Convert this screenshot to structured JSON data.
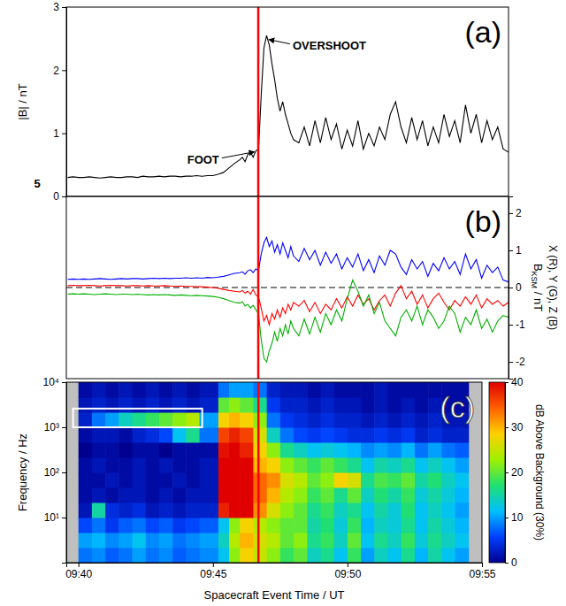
{
  "chart_data": [
    {
      "type": "line",
      "panel_label": "(a)",
      "y_label": "|B| / nT",
      "tick_labels": "y",
      "xlim": [
        39.55,
        56.0
      ],
      "ylim": [
        0,
        3
      ],
      "yticks": [
        0,
        1,
        2,
        3
      ],
      "event_x": 46.69,
      "annotations": [
        {
          "text": "FOOT",
          "x": 46.65,
          "y": 0.72
        },
        {
          "text": "OVERSHOOT",
          "x": 46.95,
          "y": 2.5
        },
        {
          "text": "5"
        }
      ],
      "x": [
        39.6,
        39.8,
        40.0,
        40.2,
        40.4,
        40.6,
        40.8,
        41.0,
        41.2,
        41.4,
        41.6,
        41.8,
        42.0,
        42.2,
        42.4,
        42.6,
        42.8,
        43.0,
        43.2,
        43.4,
        43.6,
        43.8,
        44.0,
        44.2,
        44.4,
        44.6,
        44.8,
        45.0,
        45.2,
        45.4,
        45.6,
        45.8,
        46.0,
        46.1,
        46.2,
        46.3,
        46.4,
        46.5,
        46.6,
        46.7,
        46.8,
        46.9,
        47.0,
        47.1,
        47.2,
        47.3,
        47.4,
        47.5,
        47.6,
        47.7,
        47.8,
        47.9,
        48.0,
        48.2,
        48.4,
        48.6,
        48.8,
        49.0,
        49.2,
        49.4,
        49.6,
        49.8,
        50.0,
        50.2,
        50.4,
        50.6,
        50.8,
        51.0,
        51.2,
        51.4,
        51.6,
        51.8,
        52.0,
        52.2,
        52.4,
        52.6,
        52.8,
        53.0,
        53.2,
        53.4,
        53.6,
        53.8,
        54.0,
        54.2,
        54.4,
        54.6,
        54.8,
        55.0,
        55.2,
        55.4,
        55.6,
        55.8,
        56.0
      ],
      "series": [
        {
          "color": "#000000",
          "values": [
            0.3,
            0.31,
            0.3,
            0.3,
            0.31,
            0.3,
            0.29,
            0.3,
            0.31,
            0.3,
            0.3,
            0.31,
            0.31,
            0.3,
            0.32,
            0.31,
            0.31,
            0.32,
            0.31,
            0.32,
            0.32,
            0.31,
            0.32,
            0.32,
            0.33,
            0.32,
            0.33,
            0.33,
            0.35,
            0.38,
            0.45,
            0.52,
            0.58,
            0.62,
            0.55,
            0.66,
            0.7,
            0.62,
            0.72,
            0.75,
            1.6,
            2.35,
            2.55,
            2.4,
            2.1,
            1.85,
            1.55,
            1.35,
            1.5,
            1.3,
            1.15,
            1.0,
            0.9,
            0.85,
            1.1,
            0.8,
            1.2,
            0.85,
            1.25,
            0.9,
            1.15,
            0.75,
            1.05,
            0.8,
            1.2,
            0.75,
            1.0,
            0.8,
            1.1,
            0.9,
            1.3,
            1.5,
            1.1,
            0.85,
            1.25,
            0.9,
            1.2,
            0.8,
            1.1,
            0.85,
            1.3,
            0.95,
            1.2,
            0.85,
            1.45,
            1.0,
            1.3,
            0.85,
            1.2,
            0.9,
            1.1,
            0.75,
            0.7
          ]
        }
      ]
    },
    {
      "type": "line",
      "panel_label": "(b)",
      "y2_label": {
        "base": "B",
        "subscript": "KSM",
        "rest": " / nT"
      },
      "y2_label_line2": "X (R), Y (G), Z (B)",
      "tick_labels": "y",
      "xlim": [
        39.55,
        56.0
      ],
      "y2lim": [
        -2.45,
        2.45
      ],
      "y2ticks": [
        -2,
        -1,
        0,
        1,
        2
      ],
      "reference_line_y": 0,
      "event_x": 46.69,
      "x": [
        39.6,
        39.8,
        40.0,
        40.2,
        40.4,
        40.6,
        40.8,
        41.0,
        41.2,
        41.4,
        41.6,
        41.8,
        42.0,
        42.2,
        42.4,
        42.6,
        42.8,
        43.0,
        43.2,
        43.4,
        43.6,
        43.8,
        44.0,
        44.2,
        44.4,
        44.6,
        44.8,
        45.0,
        45.2,
        45.4,
        45.6,
        45.8,
        46.0,
        46.1,
        46.2,
        46.3,
        46.4,
        46.5,
        46.6,
        46.7,
        46.8,
        46.9,
        47.0,
        47.1,
        47.2,
        47.3,
        47.4,
        47.5,
        47.6,
        47.7,
        47.8,
        47.9,
        48.0,
        48.2,
        48.4,
        48.6,
        48.8,
        49.0,
        49.2,
        49.4,
        49.6,
        49.8,
        50.0,
        50.2,
        50.4,
        50.6,
        50.8,
        51.0,
        51.2,
        51.4,
        51.6,
        51.8,
        52.0,
        52.2,
        52.4,
        52.6,
        52.8,
        53.0,
        53.2,
        53.4,
        53.6,
        53.8,
        54.0,
        54.2,
        54.4,
        54.6,
        54.8,
        55.0,
        55.2,
        55.4,
        55.6,
        55.8,
        56.0
      ],
      "series": [
        {
          "color": "#ff0000",
          "axis": "y2",
          "values": [
            0.05,
            0.06,
            0.05,
            0.05,
            0.06,
            0.05,
            0.04,
            0.05,
            0.06,
            0.05,
            0.05,
            0.04,
            0.05,
            0.05,
            0.04,
            0.05,
            0.04,
            0.04,
            0.05,
            0.04,
            0.03,
            0.04,
            0.03,
            0.03,
            0.02,
            0.02,
            0.01,
            0.0,
            -0.02,
            -0.05,
            -0.08,
            -0.1,
            -0.12,
            -0.08,
            -0.15,
            -0.1,
            -0.18,
            -0.05,
            -0.2,
            -0.25,
            -0.55,
            -0.9,
            -0.75,
            -1.0,
            -0.7,
            -0.85,
            -0.6,
            -0.8,
            -0.55,
            -0.7,
            -0.45,
            -0.6,
            -0.4,
            -0.5,
            -0.35,
            -0.65,
            -0.4,
            -0.7,
            -0.45,
            -0.6,
            -0.3,
            -0.55,
            -0.25,
            -0.5,
            -0.2,
            -0.45,
            -0.3,
            -0.6,
            -0.35,
            -0.2,
            -0.5,
            -0.15,
            0.05,
            -0.3,
            -0.1,
            -0.45,
            -0.2,
            -0.55,
            -0.3,
            -0.15,
            -0.4,
            -0.6,
            -0.35,
            -0.5,
            -0.25,
            -0.45,
            -0.2,
            -0.55,
            -0.3,
            -0.45,
            -0.35,
            -0.5,
            -0.4
          ]
        },
        {
          "color": "#00b000",
          "axis": "y2",
          "values": [
            -0.18,
            -0.17,
            -0.18,
            -0.17,
            -0.18,
            -0.19,
            -0.18,
            -0.17,
            -0.18,
            -0.19,
            -0.18,
            -0.18,
            -0.19,
            -0.18,
            -0.19,
            -0.2,
            -0.19,
            -0.2,
            -0.19,
            -0.2,
            -0.21,
            -0.2,
            -0.21,
            -0.22,
            -0.21,
            -0.22,
            -0.23,
            -0.24,
            -0.26,
            -0.3,
            -0.35,
            -0.4,
            -0.42,
            -0.38,
            -0.5,
            -0.45,
            -0.55,
            -0.48,
            -0.6,
            -0.7,
            -1.4,
            -1.9,
            -2.0,
            -1.7,
            -1.5,
            -1.2,
            -1.45,
            -1.1,
            -1.3,
            -1.0,
            -1.25,
            -0.9,
            -1.1,
            -1.3,
            -0.85,
            -1.25,
            -0.8,
            -1.2,
            -0.7,
            -1.0,
            -0.6,
            -0.9,
            -0.3,
            0.2,
            -0.1,
            -0.5,
            -0.2,
            -0.7,
            -0.4,
            -0.9,
            -1.1,
            -1.3,
            -0.8,
            -0.6,
            -0.9,
            -0.5,
            -1.0,
            -0.6,
            -0.8,
            -1.1,
            -0.9,
            -0.5,
            -0.7,
            -1.2,
            -0.8,
            -1.0,
            -0.6,
            -1.1,
            -0.85,
            -1.2,
            -0.9,
            -0.75,
            -0.8
          ]
        },
        {
          "color": "#0000ff",
          "axis": "y2",
          "values": [
            0.22,
            0.23,
            0.22,
            0.23,
            0.22,
            0.23,
            0.24,
            0.23,
            0.22,
            0.23,
            0.24,
            0.23,
            0.24,
            0.24,
            0.23,
            0.24,
            0.25,
            0.24,
            0.25,
            0.24,
            0.25,
            0.25,
            0.26,
            0.25,
            0.26,
            0.25,
            0.27,
            0.26,
            0.28,
            0.3,
            0.34,
            0.38,
            0.4,
            0.42,
            0.36,
            0.45,
            0.48,
            0.4,
            0.5,
            0.45,
            0.9,
            1.2,
            1.35,
            1.1,
            1.25,
            0.95,
            1.15,
            0.9,
            1.2,
            1.0,
            0.8,
            1.1,
            0.85,
            0.7,
            1.05,
            0.75,
            1.0,
            0.6,
            0.95,
            0.65,
            0.9,
            0.5,
            0.8,
            0.55,
            0.9,
            0.45,
            0.75,
            0.4,
            0.85,
            0.6,
            1.0,
            0.9,
            0.55,
            0.35,
            0.75,
            0.5,
            0.7,
            0.3,
            0.65,
            0.45,
            0.8,
            0.5,
            0.7,
            0.35,
            0.9,
            0.5,
            0.75,
            0.25,
            0.6,
            0.4,
            0.55,
            0.2,
            0.15
          ]
        }
      ]
    },
    {
      "type": "heatmap",
      "panel_label": "(c)",
      "x_label": "Spacecraft Event Time / UT",
      "y_label": "Frequency / Hz",
      "tick_labels": true,
      "log": "y",
      "xlim": [
        39.55,
        55.0
      ],
      "xticks": [
        {
          "value": 40,
          "label": "09:40"
        },
        {
          "value": 45,
          "label": "09:45"
        },
        {
          "value": 50,
          "label": "09:50"
        },
        {
          "value": 55,
          "label": "09:55"
        }
      ],
      "ylim": [
        1,
        10000
      ],
      "yticks": [
        {
          "value": 10,
          "label": "10¹"
        },
        {
          "value": 100,
          "label": "10²"
        },
        {
          "value": 1000,
          "label": "10³"
        },
        {
          "value": 10000,
          "label": "10⁴"
        }
      ],
      "event_x": 46.69,
      "highlight_box": {
        "x": [
          39.8,
          44.6
        ],
        "y": [
          1000,
          2600
        ]
      },
      "colorbar": {
        "lim": [
          0,
          40
        ],
        "ticks": [
          0,
          10,
          20,
          30,
          40
        ],
        "label": "dB Above Background (30%)"
      },
      "x_edges": [
        40.0,
        40.5,
        41.0,
        41.5,
        42.0,
        42.5,
        43.0,
        43.5,
        44.0,
        44.5,
        45.2,
        45.6,
        46.0,
        46.5,
        47.0,
        47.5,
        48.0,
        48.5,
        49.0,
        49.5,
        50.0,
        50.5,
        51.0,
        51.5,
        52.0,
        52.5,
        53.0,
        53.5,
        54.0,
        54.5
      ],
      "y_edges": [
        1,
        2.154,
        4.642,
        10,
        21.54,
        46.42,
        100,
        215.4,
        464.2,
        1000,
        2154,
        4642,
        10000
      ],
      "cells": [
        [
          8,
          9,
          7,
          8,
          10,
          8,
          9,
          7,
          8,
          9,
          12,
          22,
          28,
          25,
          22,
          18,
          20,
          14,
          16,
          12,
          18,
          10,
          14,
          12,
          16,
          11,
          15,
          12,
          10
        ],
        [
          10,
          11,
          9,
          10,
          12,
          9,
          10,
          8,
          9,
          10,
          14,
          24,
          30,
          26,
          24,
          20,
          22,
          16,
          18,
          14,
          20,
          12,
          16,
          14,
          18,
          13,
          16,
          14,
          12
        ],
        [
          6,
          8,
          5,
          7,
          8,
          6,
          7,
          5,
          6,
          7,
          12,
          22,
          28,
          24,
          22,
          20,
          20,
          15,
          17,
          13,
          18,
          11,
          14,
          13,
          16,
          12,
          15,
          13,
          11
        ],
        [
          2,
          15,
          4,
          3,
          4,
          2,
          3,
          2,
          3,
          3,
          38,
          40,
          40,
          32,
          26,
          22,
          20,
          16,
          18,
          14,
          16,
          12,
          15,
          13,
          17,
          12,
          14,
          12,
          10
        ],
        [
          1,
          2,
          1,
          2,
          2,
          1,
          2,
          1,
          2,
          2,
          40,
          40,
          40,
          34,
          30,
          24,
          22,
          18,
          20,
          16,
          20,
          14,
          17,
          15,
          18,
          13,
          15,
          13,
          11
        ],
        [
          1,
          1,
          2,
          1,
          2,
          1,
          1,
          2,
          1,
          2,
          40,
          40,
          40,
          34,
          32,
          26,
          24,
          20,
          22,
          28,
          26,
          16,
          19,
          18,
          20,
          15,
          17,
          14,
          12
        ],
        [
          1,
          2,
          1,
          1,
          2,
          1,
          2,
          1,
          1,
          2,
          40,
          40,
          40,
          30,
          28,
          22,
          20,
          18,
          20,
          18,
          16,
          12,
          15,
          14,
          16,
          12,
          14,
          12,
          10
        ],
        [
          0,
          1,
          1,
          0,
          1,
          1,
          0,
          1,
          1,
          1,
          39,
          40,
          38,
          28,
          22,
          16,
          14,
          12,
          13,
          12,
          11,
          9,
          10,
          9,
          11,
          8,
          10,
          8,
          7
        ],
        [
          1,
          2,
          2,
          1,
          3,
          4,
          6,
          12,
          16,
          8,
          36,
          38,
          36,
          26,
          14,
          8,
          6,
          5,
          6,
          5,
          4,
          4,
          5,
          4,
          5,
          3,
          4,
          3,
          3
        ],
        [
          3,
          8,
          10,
          14,
          16,
          18,
          20,
          22,
          24,
          10,
          28,
          30,
          28,
          22,
          8,
          5,
          4,
          3,
          4,
          3,
          3,
          2,
          3,
          2,
          3,
          2,
          3,
          2,
          2
        ],
        [
          2,
          3,
          2,
          3,
          2,
          3,
          2,
          3,
          2,
          3,
          20,
          22,
          20,
          16,
          5,
          3,
          3,
          2,
          3,
          2,
          2,
          1,
          2,
          1,
          2,
          1,
          2,
          1,
          1
        ],
        [
          1,
          2,
          1,
          2,
          1,
          2,
          1,
          2,
          1,
          2,
          8,
          10,
          10,
          8,
          3,
          2,
          2,
          1,
          2,
          1,
          1,
          1,
          2,
          1,
          1,
          1,
          1,
          1,
          1
        ]
      ]
    }
  ]
}
